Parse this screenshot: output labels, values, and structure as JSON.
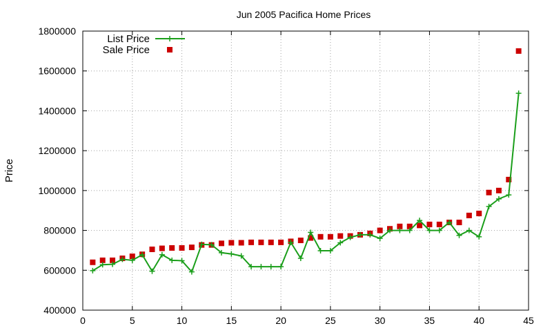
{
  "chart_data": {
    "type": "line",
    "title": "Jun 2005 Pacifica Home Prices",
    "xlabel": "",
    "ylabel": "Price",
    "xlim": [
      0,
      45
    ],
    "ylim": [
      400000,
      1800000
    ],
    "x_ticks": [
      0,
      5,
      10,
      15,
      20,
      25,
      30,
      35,
      40,
      45
    ],
    "y_ticks": [
      400000,
      600000,
      800000,
      1000000,
      1200000,
      1400000,
      1600000,
      1800000
    ],
    "grid": true,
    "legend_position": "top-left",
    "series": [
      {
        "name": "List Price",
        "style": "line-plus",
        "color": "#1a9e1a",
        "x": [
          1,
          2,
          3,
          4,
          5,
          6,
          7,
          8,
          9,
          10,
          11,
          12,
          13,
          14,
          15,
          16,
          17,
          18,
          19,
          20,
          21,
          22,
          23,
          24,
          25,
          26,
          27,
          28,
          29,
          30,
          31,
          32,
          33,
          34,
          35,
          36,
          37,
          38,
          39,
          40,
          41,
          42,
          43,
          44
        ],
        "values": [
          598000,
          628000,
          630000,
          655000,
          650000,
          678000,
          595000,
          678000,
          650000,
          648000,
          592000,
          730000,
          728000,
          688000,
          682000,
          672000,
          618000,
          618000,
          618000,
          618000,
          740000,
          660000,
          790000,
          698000,
          698000,
          738000,
          765000,
          778000,
          778000,
          760000,
          800000,
          800000,
          800000,
          850000,
          800000,
          800000,
          840000,
          775000,
          800000,
          768000,
          920000,
          958000,
          978000,
          1488000
        ]
      },
      {
        "name": "Sale Price",
        "style": "square-markers",
        "color": "#cc0000",
        "x": [
          1,
          2,
          3,
          4,
          5,
          6,
          7,
          8,
          9,
          10,
          11,
          12,
          13,
          14,
          15,
          16,
          17,
          18,
          19,
          20,
          21,
          22,
          23,
          24,
          25,
          26,
          27,
          28,
          29,
          30,
          31,
          32,
          33,
          34,
          35,
          36,
          37,
          38,
          39,
          40,
          41,
          42,
          43,
          44
        ],
        "values": [
          640000,
          650000,
          650000,
          660000,
          670000,
          680000,
          705000,
          710000,
          712000,
          712000,
          715000,
          727000,
          727000,
          735000,
          738000,
          738000,
          740000,
          740000,
          740000,
          740000,
          745000,
          750000,
          762000,
          768000,
          768000,
          772000,
          772000,
          778000,
          785000,
          800000,
          808000,
          820000,
          820000,
          825000,
          830000,
          830000,
          840000,
          840000,
          875000,
          885000,
          990000,
          1000000,
          1055000,
          1700000
        ]
      }
    ]
  }
}
